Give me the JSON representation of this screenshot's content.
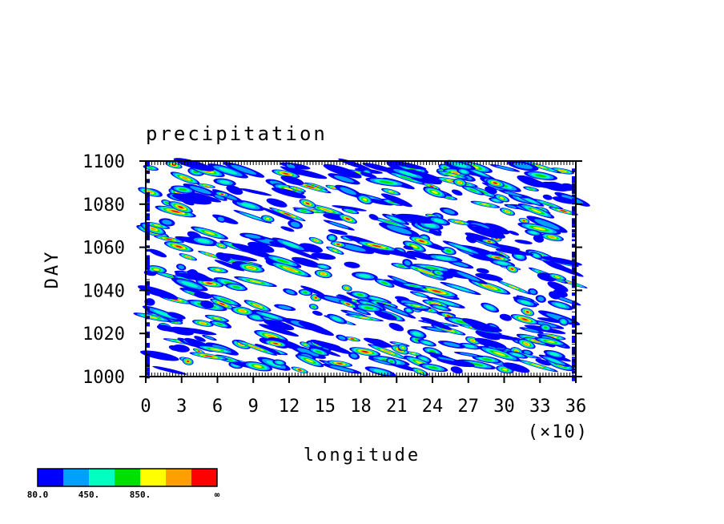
{
  "chart_data": {
    "type": "heatmap",
    "title": "precipitation",
    "xlabel": "longitude",
    "ylabel": "DAY",
    "x_multiplier_label": "(×10)",
    "xlim": [
      0,
      36
    ],
    "ylim": [
      1000,
      1100
    ],
    "x_ticks": [
      "0",
      "3",
      "6",
      "9",
      "12",
      "15",
      "18",
      "21",
      "24",
      "27",
      "30",
      "33",
      "36"
    ],
    "y_ticks": [
      "1000",
      "1020",
      "1040",
      "1060",
      "1080",
      "1100"
    ],
    "colorbar": {
      "colors": [
        "#0000ff",
        "#00a0ff",
        "#00ffc0",
        "#00e000",
        "#ffff00",
        "#ffa000",
        "#ff0000"
      ],
      "labels": [
        "80.0",
        "450.",
        "850.",
        "∞"
      ]
    },
    "contour_fill": "white"
  }
}
